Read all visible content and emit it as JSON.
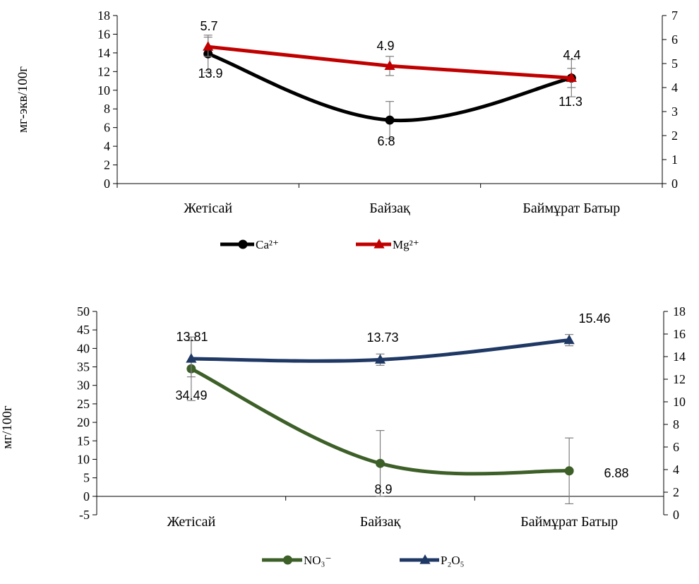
{
  "chart_data": [
    {
      "type": "line",
      "categories": [
        "Жетісай",
        "Байзақ",
        "Баймұрат Батыр"
      ],
      "ylabel": "мг-экв/100г",
      "ylim": [
        0,
        18
      ],
      "y2lim": [
        0,
        7
      ],
      "grid": false,
      "legend_position": "bottom",
      "series": [
        {
          "name": "Ca²⁺",
          "axis": "left",
          "values": [
            13.9,
            6.8,
            11.3
          ],
          "errors": [
            2.0,
            2.0,
            2.0
          ],
          "color": "#000000",
          "marker": "circle",
          "smooth": true,
          "labels": [
            "13.9",
            "6.8",
            "11.3"
          ]
        },
        {
          "name": "Mg²⁺",
          "axis": "right",
          "values": [
            5.7,
            4.9,
            4.4
          ],
          "errors": [
            0.4,
            0.4,
            0.4
          ],
          "color": "#c00000",
          "marker": "triangle",
          "smooth": false,
          "labels": [
            "5.7",
            "4.9",
            "4.4"
          ]
        }
      ]
    },
    {
      "type": "line",
      "categories": [
        "Жетісай",
        "Байзақ",
        "Баймұрат Батыр"
      ],
      "ylabel": "мг/100г",
      "ylim": [
        -5,
        50
      ],
      "y2lim": [
        0,
        18
      ],
      "grid": false,
      "legend_position": "bottom",
      "series": [
        {
          "name": "NO₃⁻",
          "axis": "left",
          "values": [
            34.49,
            8.9,
            6.88
          ],
          "errors": [
            8.6,
            8.9,
            8.9
          ],
          "color": "#3d5f28",
          "marker": "circle",
          "smooth": true,
          "labels": [
            "34.49",
            "8.9",
            "6.88"
          ]
        },
        {
          "name": "P₂O₅",
          "axis": "right",
          "values": [
            13.81,
            13.73,
            15.46
          ],
          "errors": [
            1.6,
            0.5,
            0.5
          ],
          "color": "#1f3864",
          "marker": "triangle",
          "smooth": true,
          "labels": [
            "13.81",
            "13.73",
            "15.46"
          ]
        }
      ]
    }
  ]
}
